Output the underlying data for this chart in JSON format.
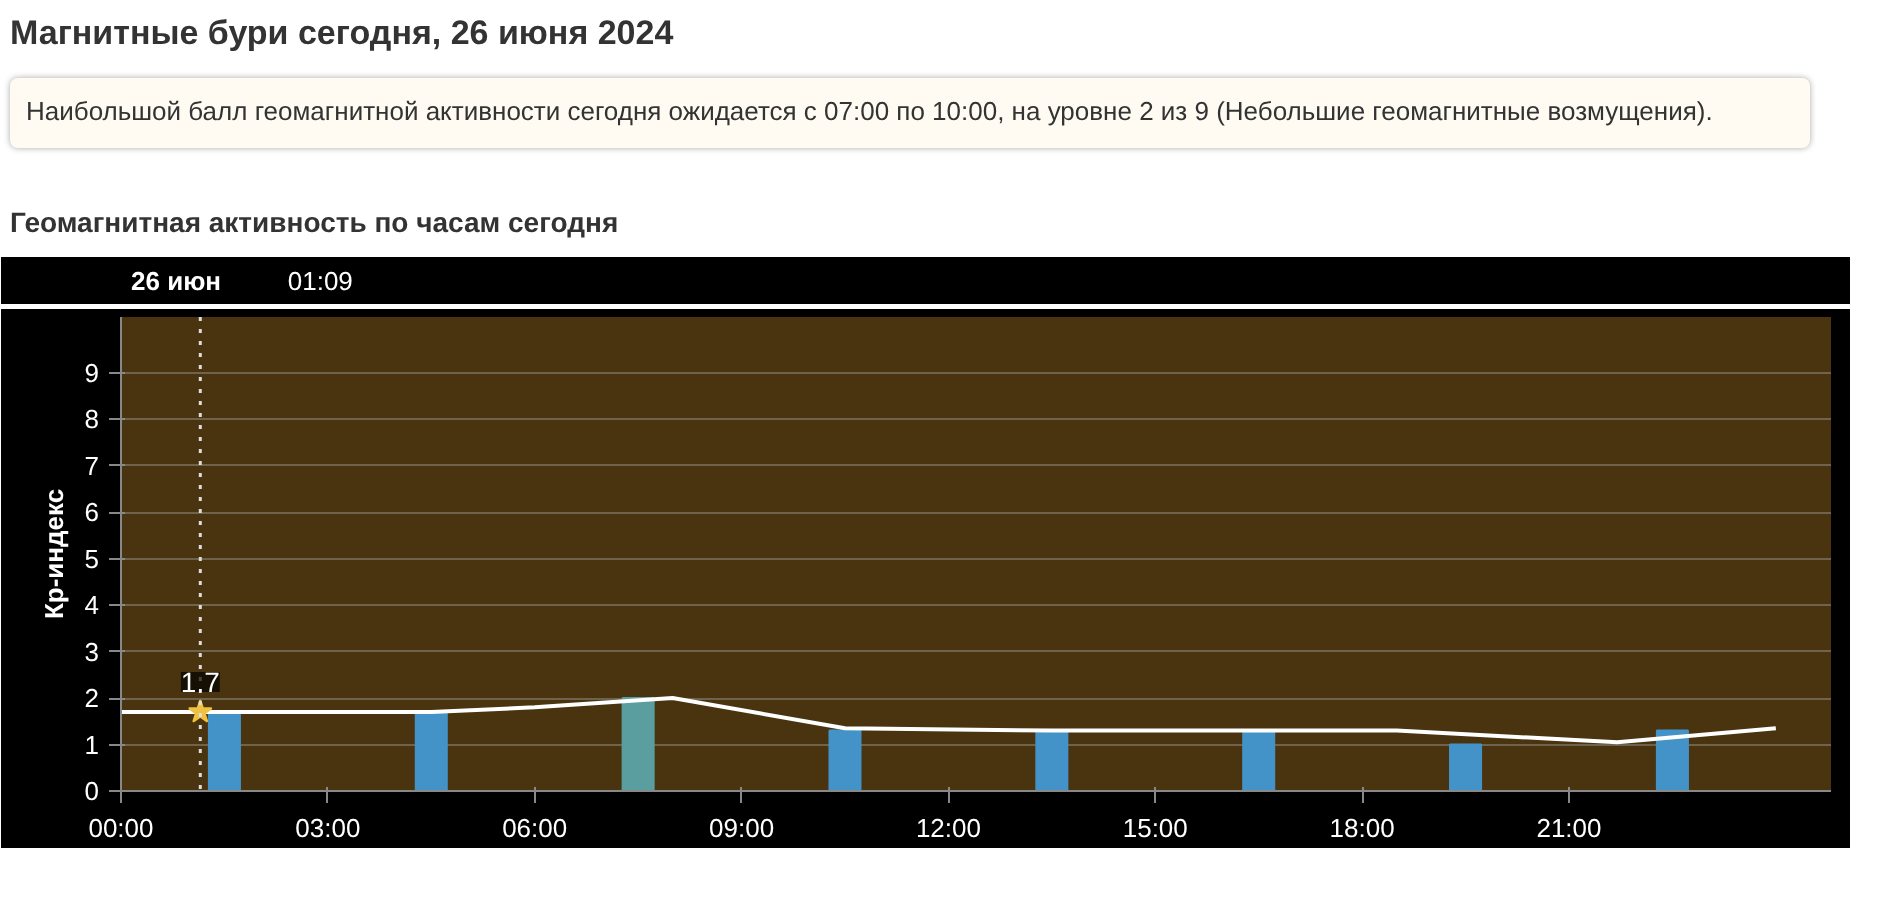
{
  "chart_data": {
    "type": "bar",
    "title": "Магнитные бури сегодня, 26 июня 2024",
    "subtitle": "Геомагнитная активность по часам сегодня",
    "annotations": [
      "Наибольшой балл геомагнитной активности сегодня ожидается с 07:00 по 10:00, на уровне 2 из 9 (Небольшие геомагнитные возмущения).",
      "26 июн",
      {
        "text": "1.7",
        "x": 1.15,
        "y": 1.7
      }
    ],
    "ylabel": "Кр-индекс",
    "x": [
      1.5,
      4.5,
      7.5,
      10.5,
      13.5,
      16.5,
      19.5,
      22.5
    ],
    "series": [
      {
        "colors": [
          "#4393c9",
          "#4393c9",
          "#5a9ea0",
          "#4393c9",
          "#4393c9",
          "#4393c9",
          "#4393c9",
          "#4393c9"
        ],
        "values": [
          1.7,
          1.7,
          2.0,
          1.3,
          1.3,
          1.3,
          1.0,
          1.3
        ]
      },
      {
        "type": "line",
        "color": "#ffffff",
        "x": [
          0,
          1.5,
          4.5,
          6.0,
          8.0,
          10.5,
          13.5,
          16.5,
          18.5,
          21.7,
          24.0
        ],
        "values": [
          1.7,
          1.7,
          1.7,
          1.8,
          2.0,
          1.35,
          1.3,
          1.3,
          1.3,
          1.05,
          1.35
        ]
      }
    ],
    "xlim": [
      0,
      24.8
    ],
    "ylim": [
      0,
      10.2
    ],
    "xticks": [
      {
        "value": 0,
        "label": "00:00"
      },
      {
        "value": 3,
        "label": "03:00"
      },
      {
        "value": 6,
        "label": "06:00"
      },
      {
        "value": 9,
        "label": "09:00"
      },
      {
        "value": 12,
        "label": "12:00"
      },
      {
        "value": 15,
        "label": "15:00"
      },
      {
        "value": 18,
        "label": "18:00"
      },
      {
        "value": 21,
        "label": "21:00"
      }
    ],
    "yticks": [
      0,
      1,
      2,
      3,
      4,
      5,
      6,
      7,
      8,
      9
    ],
    "ref_lines": [
      {
        "axis": "x",
        "value": 1.15,
        "label": "01:09",
        "color": "#dddddd",
        "line_style": "dotted"
      }
    ],
    "grid": "y",
    "marker": "none"
  }
}
